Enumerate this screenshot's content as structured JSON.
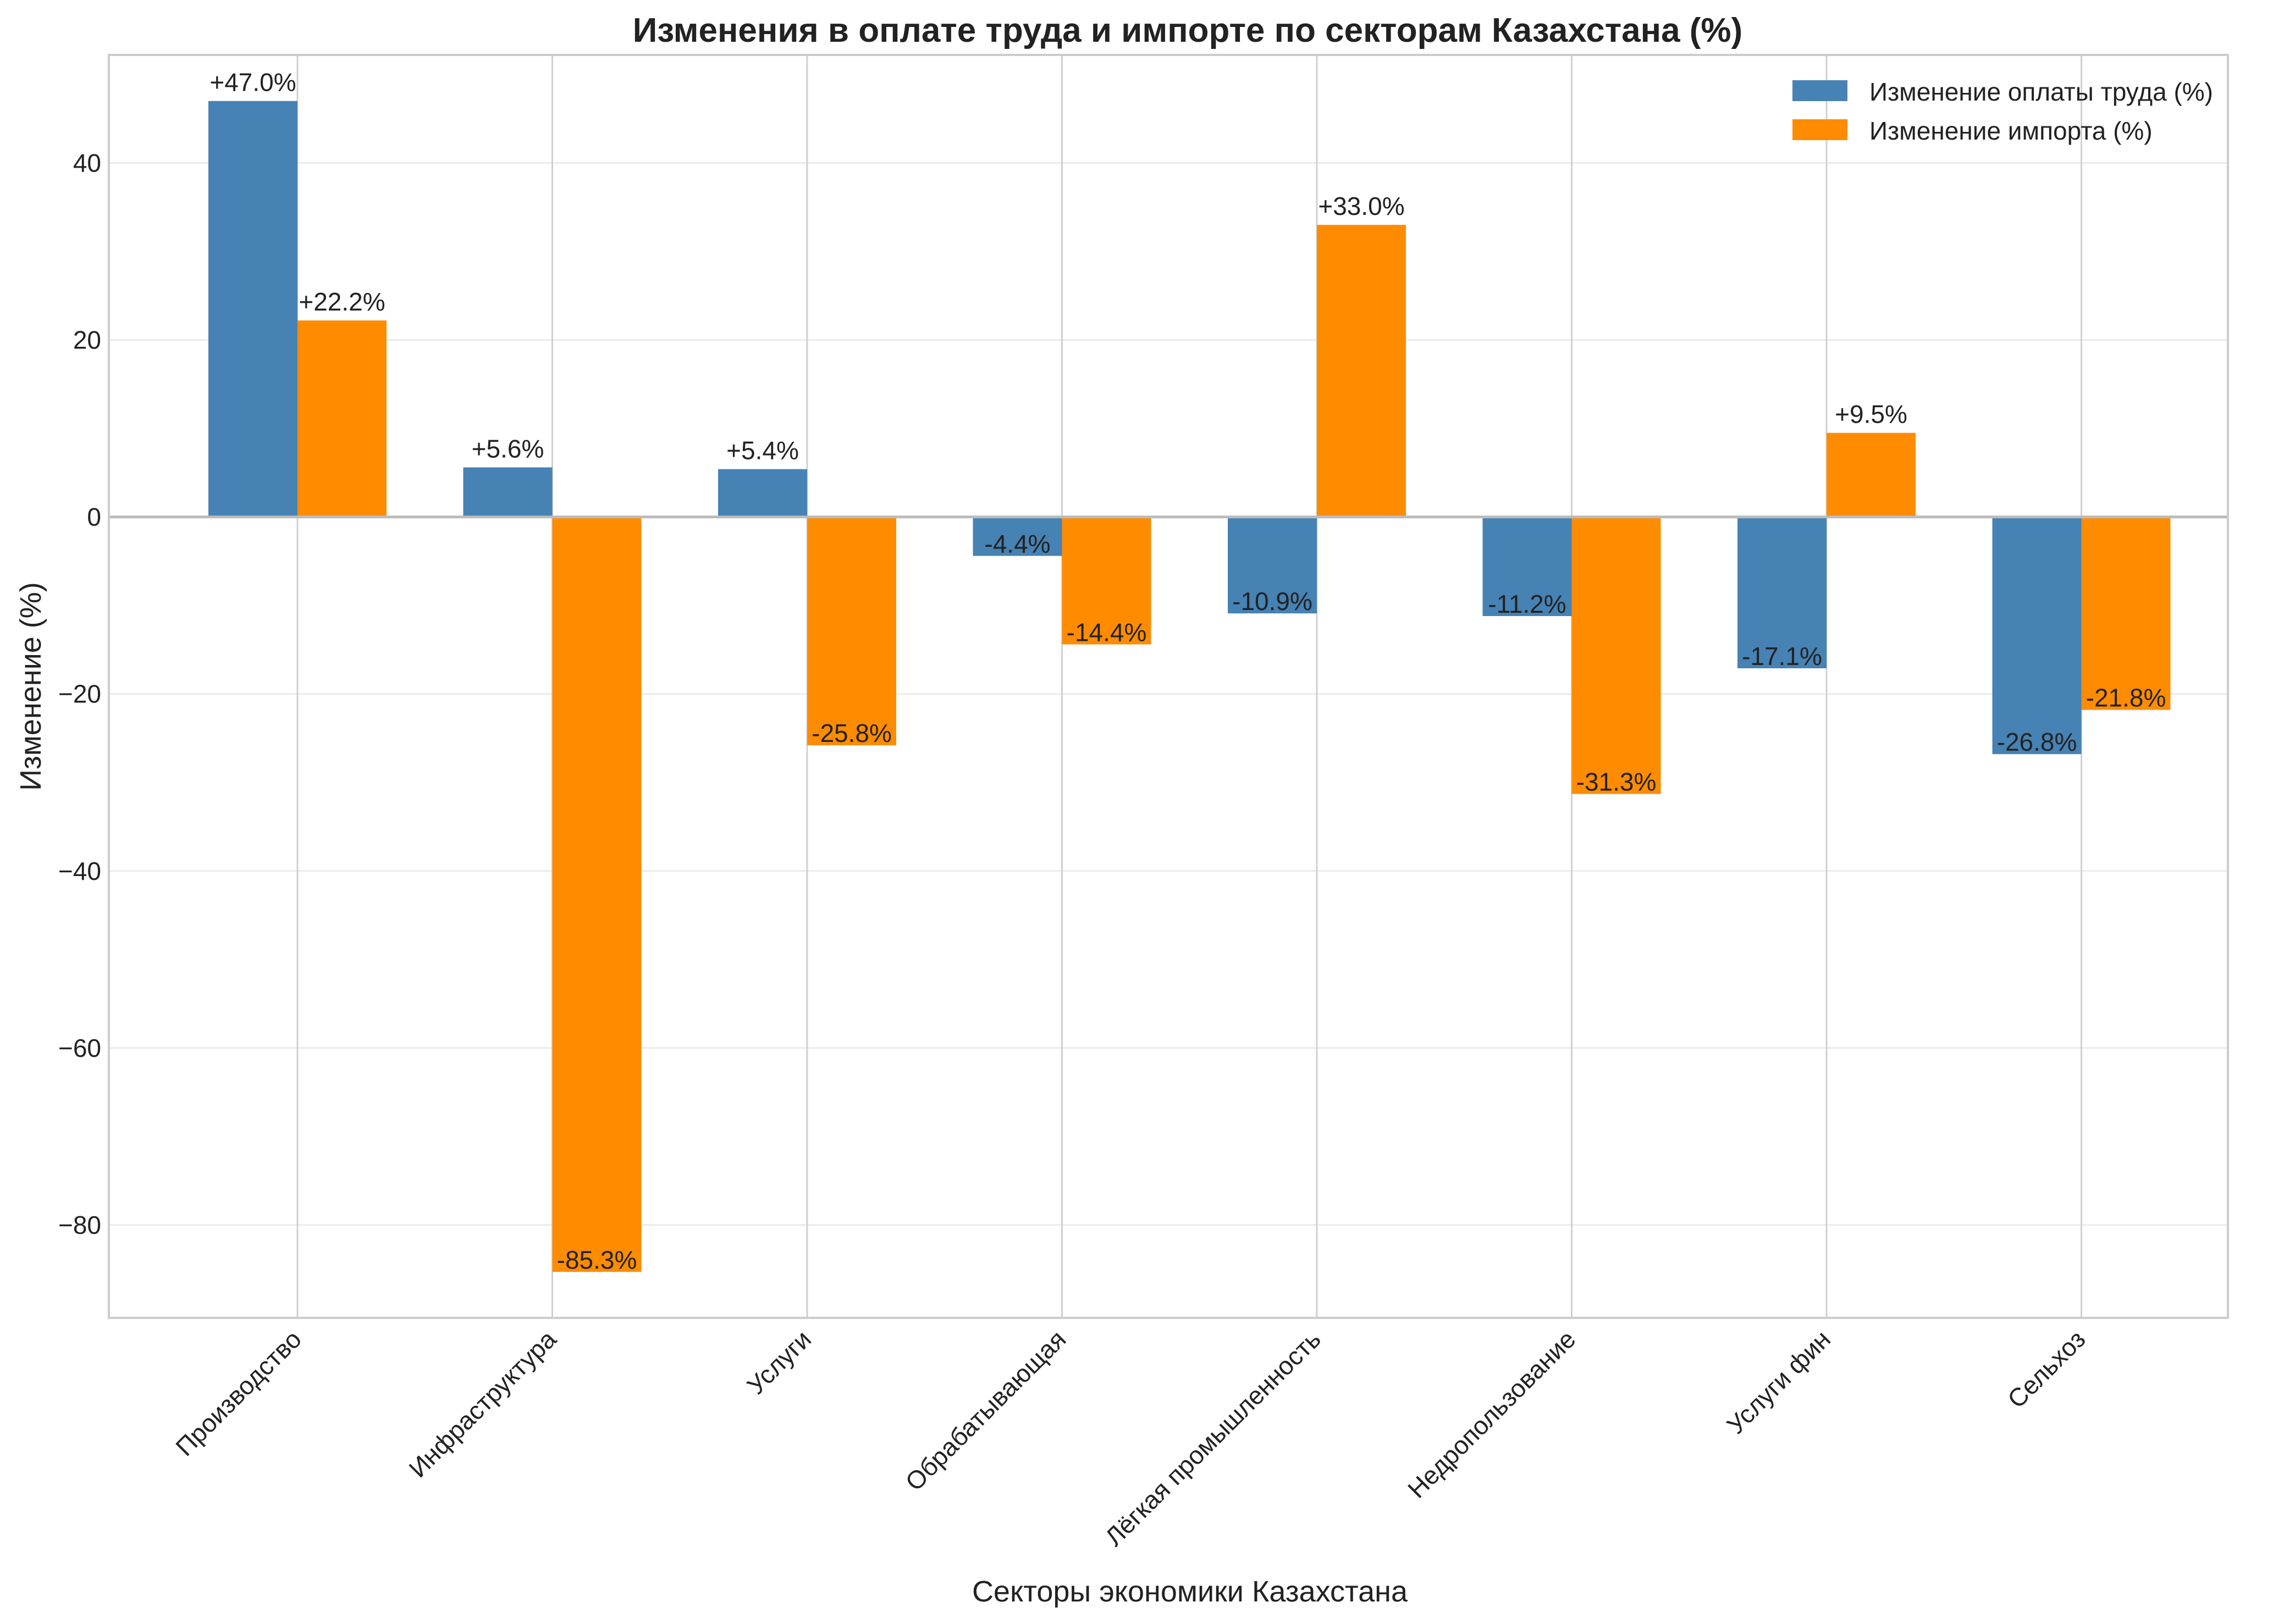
{
  "chart_data": {
    "type": "bar",
    "title": "Изменения в оплате труда и импорте по секторам Казахстана (%)",
    "xlabel": "Секторы экономики Казахстана",
    "ylabel": "Изменение (%)",
    "categories": [
      "Производство",
      "Инфраструктура",
      "Услуги",
      "Обрабатывающая",
      "Лёгкая промышленность",
      "Недропользование",
      "Услуги фин",
      "Сельхоз"
    ],
    "series": [
      {
        "name": "Изменение оплаты труда (%)",
        "color": "#4682b4",
        "values": [
          47.0,
          5.6,
          5.4,
          -4.4,
          -10.9,
          -11.2,
          -17.1,
          -26.8
        ],
        "labels": [
          "+47.0%",
          "+5.6%",
          "+5.4%",
          "-4.4%",
          "-10.9%",
          "-11.2%",
          "-17.1%",
          "-26.8%"
        ]
      },
      {
        "name": "Изменение импорта (%)",
        "color": "#ff8c00",
        "values": [
          22.2,
          -85.3,
          -25.8,
          -14.4,
          33.0,
          -31.3,
          9.5,
          -21.8
        ],
        "labels": [
          "+22.2%",
          "-85.3%",
          "-25.8%",
          "-14.4%",
          "+33.0%",
          "-31.3%",
          "+9.5%",
          "-21.8%"
        ]
      }
    ],
    "ylim": [
      -90.5,
      52.2
    ],
    "yticks": [
      40,
      20,
      0,
      -20,
      -40,
      -60,
      -80
    ],
    "ytick_labels": [
      "40",
      "20",
      "0",
      "−20",
      "−40",
      "−60",
      "−80"
    ],
    "grid": true,
    "legend_position": "top-right"
  }
}
